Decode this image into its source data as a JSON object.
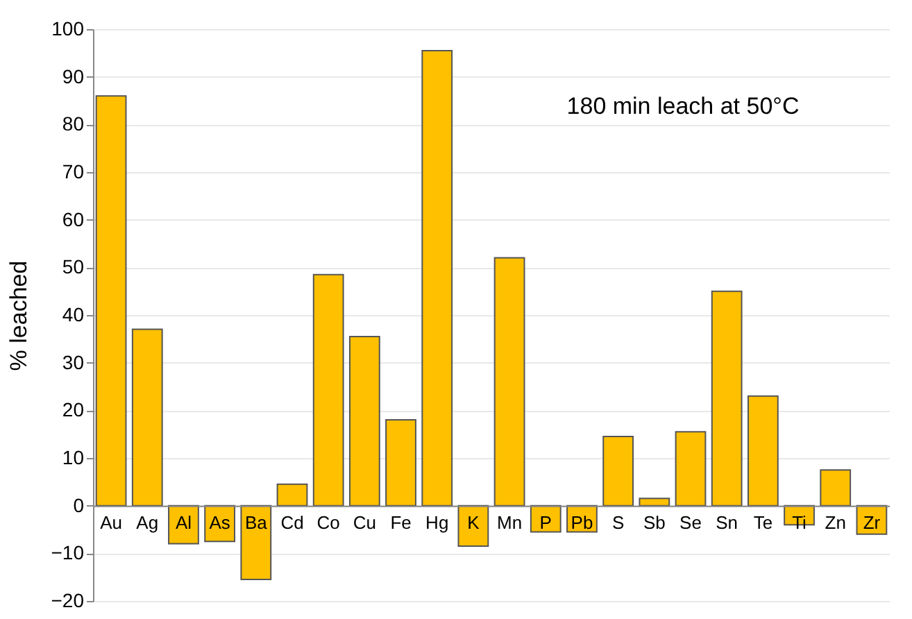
{
  "chart_data": {
    "type": "bar",
    "ylabel": "% leached",
    "annotations": [
      "180 min leach at 50°C"
    ],
    "categories": [
      "Au",
      "Ag",
      "Al",
      "As",
      "Ba",
      "Cd",
      "Co",
      "Cu",
      "Fe",
      "Hg",
      "K",
      "Mn",
      "P",
      "Pb",
      "S",
      "Sb",
      "Se",
      "Sn",
      "Te",
      "Ti",
      "Zn",
      "Zr"
    ],
    "values": [
      86,
      37,
      -8,
      -7.5,
      -15.5,
      4.5,
      48.5,
      35.5,
      18,
      95.5,
      -8.5,
      52,
      -5.5,
      -5.5,
      14.5,
      1.5,
      15.5,
      45,
      23,
      -4,
      7.5,
      -6
    ],
    "color": "#ffc000",
    "ylim": [
      -20,
      100
    ],
    "yticks": [
      -20,
      -10,
      0,
      10,
      20,
      30,
      40,
      50,
      60,
      70,
      80,
      90,
      100
    ],
    "grid": "y"
  }
}
